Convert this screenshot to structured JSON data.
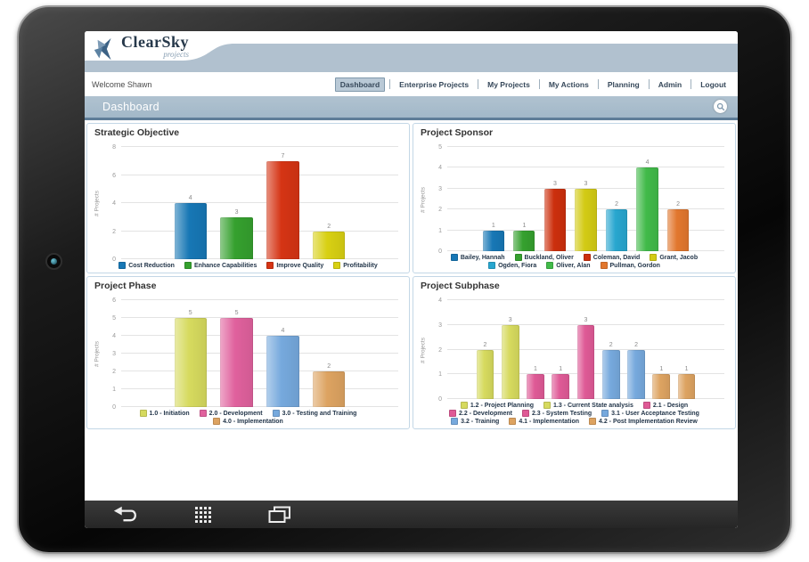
{
  "app": {
    "logo": {
      "title": "ClearSky",
      "subtitle": "projects"
    },
    "welcome_text": "Welcome Shawn",
    "nav": {
      "items": [
        {
          "label": "Dashboard",
          "active": true
        },
        {
          "label": "Enterprise Projects",
          "active": false
        },
        {
          "label": "My Projects",
          "active": false
        },
        {
          "label": "My Actions",
          "active": false
        },
        {
          "label": "Planning",
          "active": false
        },
        {
          "label": "Admin",
          "active": false
        },
        {
          "label": "Logout",
          "active": false
        }
      ]
    },
    "page_title": "Dashboard",
    "icons": {
      "logo_mark": "pinwheel",
      "search": "magnifier-in-circle",
      "android_back": "u-turn-arrow",
      "android_apps": "dot-grid",
      "android_recents": "stacked-windows",
      "front_camera": "camera-lens"
    },
    "colors": {
      "header_band": "#b1c1cf",
      "titlebar": "#a9bdcc",
      "titlebar_underline": "#5e7d98",
      "panel_border": "#c3d7e6",
      "android_bar": "#2e2e2e"
    }
  },
  "chart_data": [
    {
      "type": "bar",
      "title": "Strategic Objective",
      "ylabel": "# Projects",
      "ylim": [
        0,
        8
      ],
      "yticks": [
        0,
        2,
        4,
        6,
        8
      ],
      "grid": true,
      "legend_position": "bottom",
      "categories": [
        "Cost Reduction",
        "Enhance Capabilities",
        "Improve Quality",
        "Profitability"
      ],
      "values": [
        4,
        3,
        7,
        2
      ],
      "colors": [
        "#1777b5",
        "#35a02e",
        "#d53414",
        "#d8d013"
      ]
    },
    {
      "type": "bar",
      "title": "Project Sponsor",
      "ylabel": "# Projects",
      "ylim": [
        0,
        5
      ],
      "yticks": [
        0,
        1,
        2,
        3,
        4,
        5
      ],
      "grid": true,
      "legend_position": "bottom",
      "categories": [
        "Bailey, Hannah",
        "Buckland, Oliver",
        "Coleman, David",
        "Grant, Jacob",
        "Ogden, Fiora",
        "Oliver, Alan",
        "Pullman, Gordon"
      ],
      "values": [
        1,
        1,
        3,
        3,
        2,
        4,
        2
      ],
      "colors": [
        "#1777b5",
        "#35a02e",
        "#cc2f0d",
        "#d3cb14",
        "#28a6cf",
        "#41ba49",
        "#e2772e"
      ]
    },
    {
      "type": "bar",
      "title": "Project Phase",
      "ylabel": "# Projects",
      "ylim": [
        0,
        6
      ],
      "yticks": [
        0,
        1,
        2,
        3,
        4,
        5,
        6
      ],
      "grid": true,
      "legend_position": "bottom",
      "categories": [
        "1.0 - Initiation",
        "2.0 - Development",
        "3.0 - Testing and Training",
        "4.0 - Implementation"
      ],
      "values": [
        5,
        5,
        4,
        2
      ],
      "colors": [
        "#d6da5e",
        "#e0619d",
        "#76a9dd",
        "#dda361"
      ]
    },
    {
      "type": "bar",
      "title": "Project Subphase",
      "ylabel": "# Projects",
      "ylim": [
        0,
        4
      ],
      "yticks": [
        0,
        1,
        2,
        3,
        4
      ],
      "grid": true,
      "legend_position": "bottom",
      "categories": [
        "1.2 - Project Planning",
        "1.3 - Current State analysis",
        "2.1 - Design",
        "2.2 - Development",
        "2.3 - System Testing",
        "3.1 - User Acceptance Testing",
        "3.2 - Training",
        "4.1 - Implementation",
        "4.2 - Post Implementation Review"
      ],
      "values": [
        2,
        3,
        1,
        1,
        3,
        2,
        2,
        1,
        1
      ],
      "colors": [
        "#d6da5e",
        "#d6da5e",
        "#df5a96",
        "#df5a96",
        "#df5a96",
        "#76a9dd",
        "#76a9dd",
        "#dda361",
        "#dda361"
      ]
    }
  ]
}
